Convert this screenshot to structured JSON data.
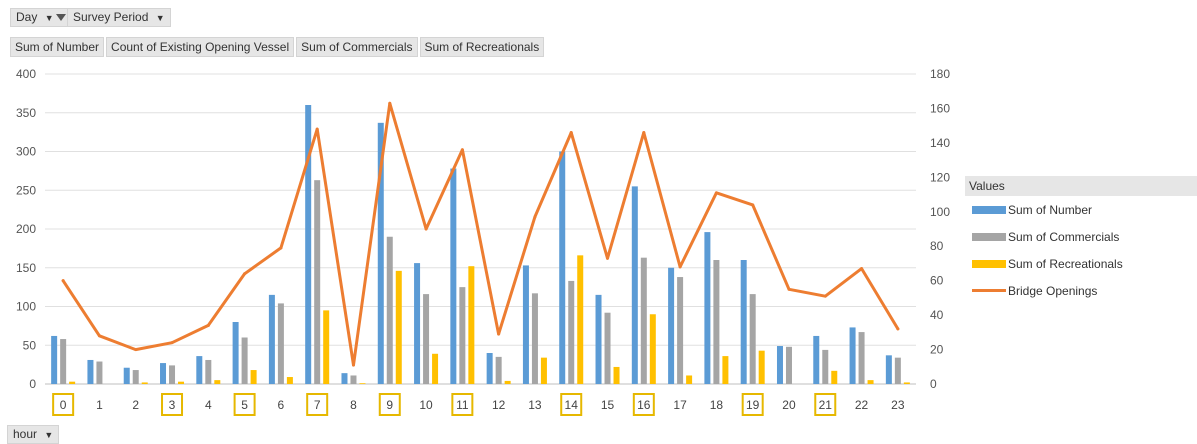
{
  "filters": {
    "day_label": "Day",
    "survey_label": "Survey Period",
    "hour_label": "hour"
  },
  "value_fields": [
    "Sum of Number",
    "Count of Existing Opening Vessel",
    "Sum of Commercials",
    "Sum of Recreationals"
  ],
  "colors": {
    "number": "#5b9bd5",
    "commercials": "#a5a5a5",
    "recreationals": "#ffc000",
    "openings": "#ed7d31",
    "highlight_box": "#e6b800"
  },
  "chart_data": {
    "type": "bar",
    "categories": [
      "0",
      "1",
      "2",
      "3",
      "4",
      "5",
      "6",
      "7",
      "8",
      "9",
      "10",
      "11",
      "12",
      "13",
      "14",
      "15",
      "16",
      "17",
      "18",
      "19",
      "20",
      "21",
      "22",
      "23"
    ],
    "highlighted_categories": [
      "0",
      "3",
      "5",
      "7",
      "9",
      "11",
      "14",
      "16",
      "19",
      "21"
    ],
    "left_axis": {
      "ylim": [
        0,
        400
      ],
      "ticks": [
        0,
        50,
        100,
        150,
        200,
        250,
        300,
        350,
        400
      ]
    },
    "right_axis": {
      "ylim": [
        0,
        180
      ],
      "ticks": [
        0,
        20,
        40,
        60,
        80,
        100,
        120,
        140,
        160,
        180
      ]
    },
    "series": [
      {
        "name": "Sum of Number",
        "type": "bar",
        "axis": "left",
        "values": [
          62,
          31,
          21,
          27,
          36,
          80,
          115,
          360,
          14,
          337,
          156,
          278,
          40,
          153,
          300,
          115,
          255,
          150,
          196,
          160,
          49,
          62,
          73,
          37
        ]
      },
      {
        "name": "Sum of Commercials",
        "type": "bar",
        "axis": "left",
        "values": [
          58,
          29,
          18,
          24,
          31,
          60,
          104,
          263,
          11,
          190,
          116,
          125,
          35,
          117,
          133,
          92,
          163,
          138,
          160,
          116,
          48,
          44,
          67,
          34
        ]
      },
      {
        "name": "Sum of Recreationals",
        "type": "bar",
        "axis": "left",
        "values": [
          3,
          0,
          2,
          3,
          5,
          18,
          9,
          95,
          1,
          146,
          39,
          152,
          4,
          34,
          166,
          22,
          90,
          11,
          36,
          43,
          0,
          17,
          5,
          2
        ]
      },
      {
        "name": "Bridge Openings",
        "type": "line",
        "axis": "right",
        "values": [
          60,
          28,
          20,
          24,
          34,
          64,
          79,
          148,
          11,
          163,
          90,
          136,
          29,
          97,
          146,
          73,
          146,
          68,
          111,
          104,
          55,
          51,
          67,
          32
        ]
      }
    ],
    "legend": {
      "title": "Values",
      "position": "right"
    }
  }
}
